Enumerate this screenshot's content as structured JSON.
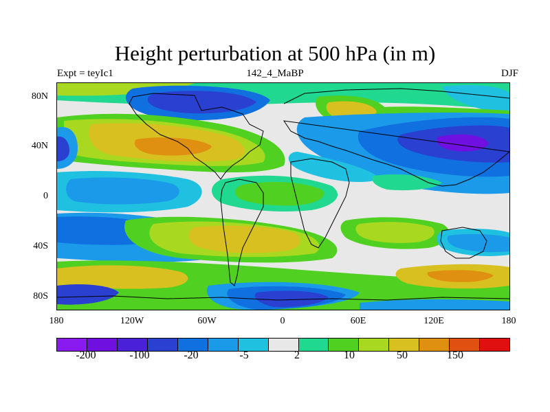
{
  "title": "Height perturbation at 500 hPa (in m)",
  "subtitle_left": "Expt = teyIc1",
  "subtitle_center": "142_4_MaBP",
  "subtitle_right": "DJF",
  "y_axis_labels": [
    "80N",
    "40N",
    "0",
    "40S",
    "80S"
  ],
  "x_axis_labels": [
    "180",
    "120W",
    "60W",
    "0",
    "60E",
    "120E",
    "180"
  ],
  "colorbar": {
    "colors": [
      "#8a1bf0",
      "#7010e0",
      "#4a20d8",
      "#2a40d0",
      "#1070e0",
      "#1a9ae8",
      "#20c0e0",
      "#e8e8e8",
      "#20d890",
      "#50d020",
      "#a8d820",
      "#d8c020",
      "#e09010",
      "#e05010",
      "#e01010"
    ],
    "labels": [
      "-200",
      "-100",
      "-20",
      "-5",
      "2",
      "10",
      "50",
      "150"
    ]
  },
  "palette": {
    "deep_violet": "#7010e0",
    "blue_dark": "#2a40d0",
    "blue": "#1070e0",
    "sky": "#1a9ae8",
    "cyan": "#20c0e0",
    "neutral": "#e8e8e8",
    "teal": "#20d890",
    "green": "#50d020",
    "lime": "#a8d820",
    "gold": "#d8c020",
    "orange": "#e09010"
  }
}
